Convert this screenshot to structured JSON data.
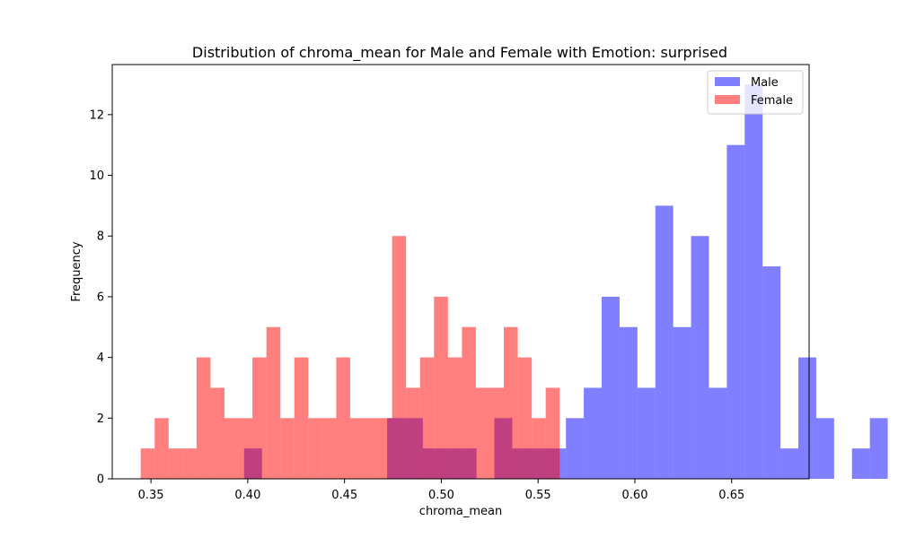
{
  "chart_data": {
    "type": "bar",
    "title": "Distribution of chroma_mean for Male and Female with Emotion: surprised",
    "xlabel": "chroma_mean",
    "ylabel": "Frequency",
    "xlim": [
      0.33,
      0.69
    ],
    "ylim": [
      0,
      13.65
    ],
    "xticks": [
      0.35,
      0.4,
      0.45,
      0.5,
      0.55,
      0.6,
      0.65
    ],
    "xtick_labels": [
      "0.35",
      "0.40",
      "0.45",
      "0.50",
      "0.55",
      "0.60",
      "0.65"
    ],
    "yticks": [
      0,
      2,
      4,
      6,
      8,
      10,
      12
    ],
    "ytick_labels": [
      "0",
      "2",
      "4",
      "6",
      "8",
      "10",
      "12"
    ],
    "grid": false,
    "legend_position": "top-right",
    "series": [
      {
        "name": "Male",
        "color": "#0000ff",
        "alpha": 0.5,
        "bin_start": 0.3981,
        "bin_width": 0.009237,
        "values": [
          1,
          0,
          0,
          0,
          0,
          0,
          0,
          0,
          2,
          2,
          1,
          1,
          1,
          0,
          2,
          1,
          1,
          1,
          2,
          3,
          6,
          5,
          3,
          9,
          5,
          8,
          3,
          11,
          13,
          7,
          1,
          4,
          2,
          0,
          1,
          2
        ]
      },
      {
        "name": "Female",
        "color": "#ff0000",
        "alpha": 0.5,
        "bin_start": 0.3447,
        "bin_width": 0.007215,
        "values": [
          1,
          2,
          1,
          1,
          4,
          3,
          2,
          2,
          4,
          5,
          2,
          4,
          2,
          2,
          4,
          2,
          2,
          2,
          8,
          3,
          4,
          6,
          4,
          5,
          3,
          3,
          5,
          4,
          2,
          3
        ]
      }
    ]
  }
}
